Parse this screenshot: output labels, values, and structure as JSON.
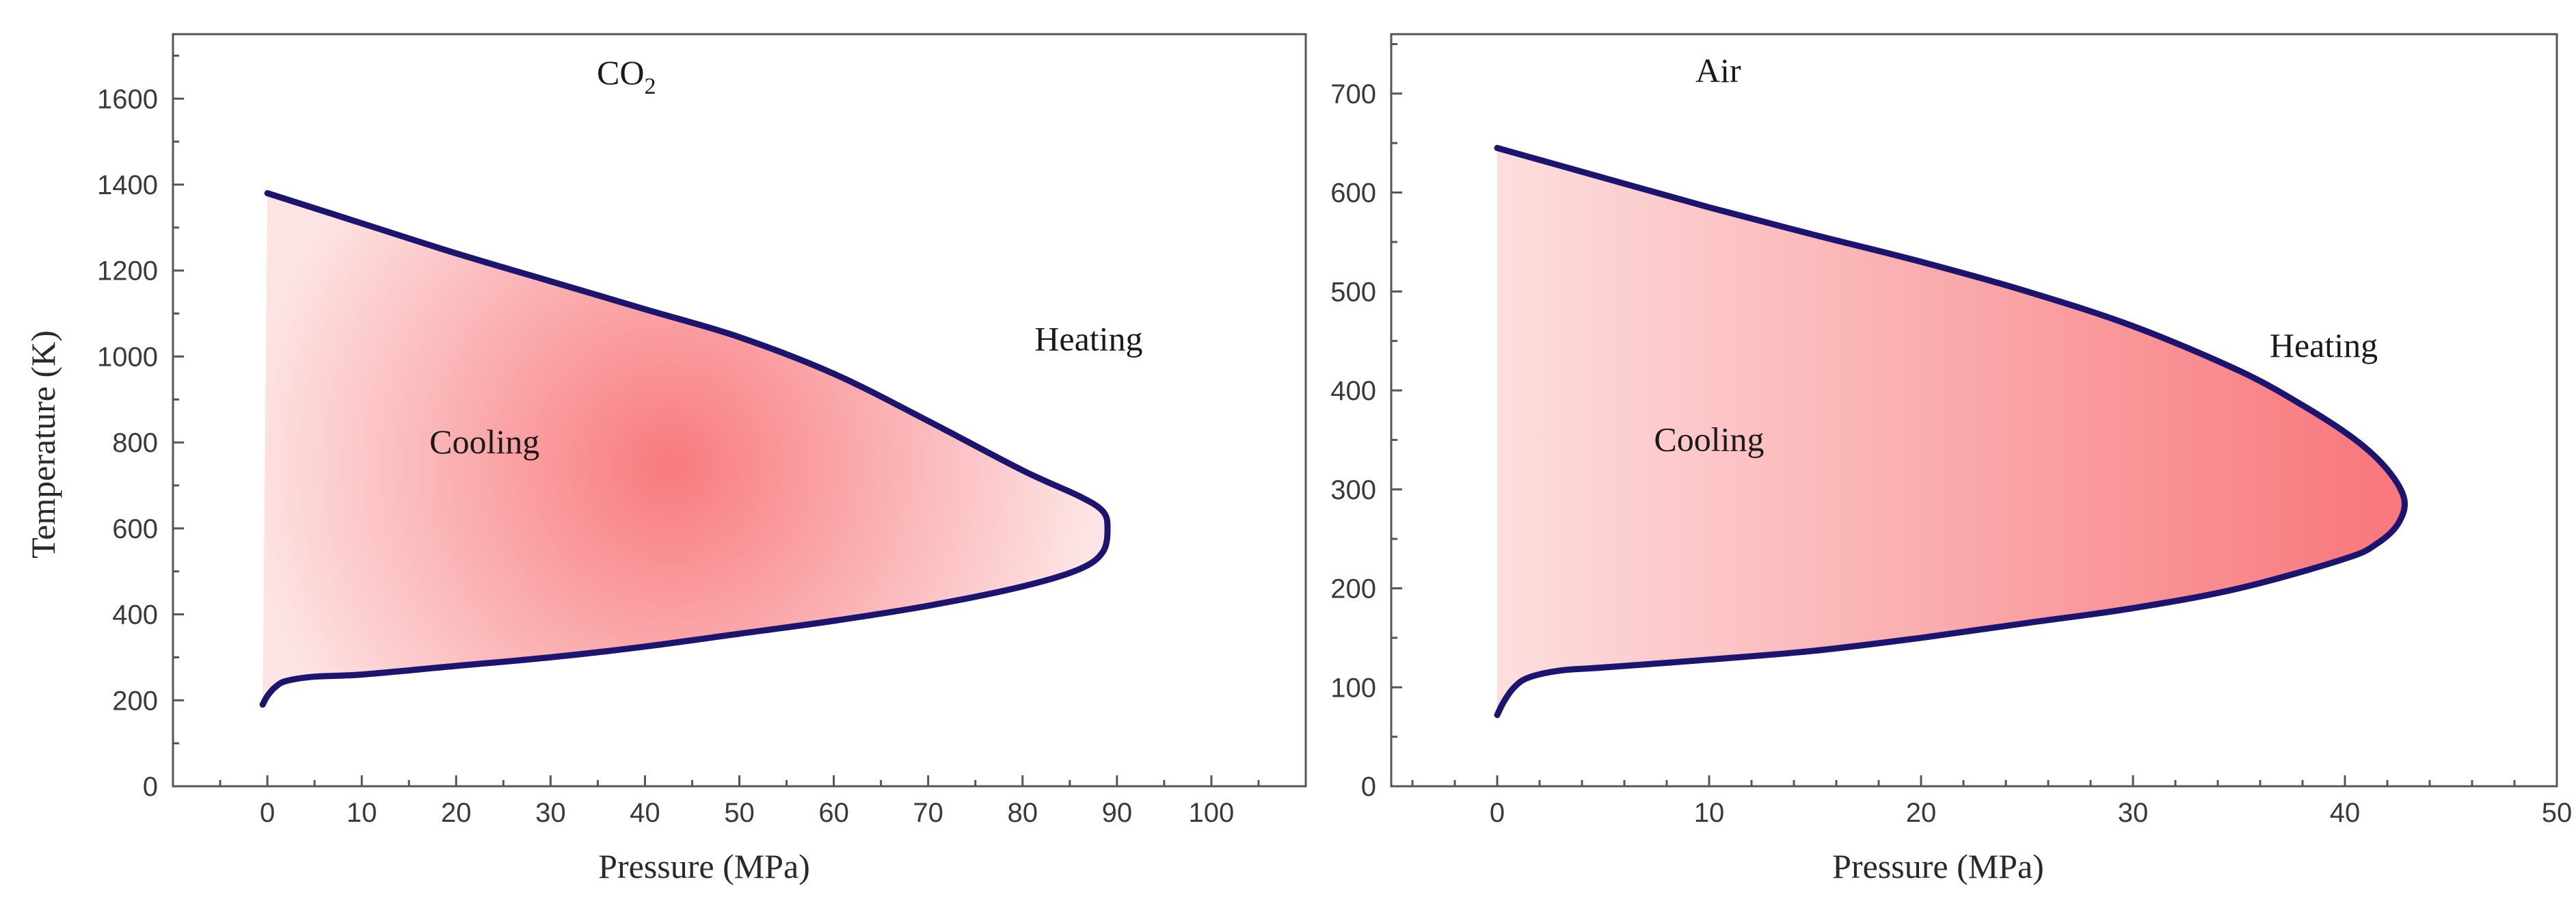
{
  "chart_data": [
    {
      "type": "area",
      "title": "CO",
      "title_subscript": "2",
      "xlabel": "Pressure (MPa)",
      "ylabel": "Temperature (K)",
      "xlim": [
        -10,
        110
      ],
      "ylim": [
        0,
        1750
      ],
      "xticks": [
        0,
        10,
        20,
        30,
        40,
        50,
        60,
        70,
        80,
        90,
        100
      ],
      "yticks": [
        0,
        200,
        400,
        600,
        800,
        1000,
        1200,
        1400,
        1600
      ],
      "grid": false,
      "annotations": [
        {
          "text": "Cooling",
          "x": 23,
          "y": 800
        },
        {
          "text": "Heating",
          "x": 87,
          "y": 1040
        }
      ],
      "upper_boundary": {
        "x": [
          0,
          10,
          20,
          30,
          40,
          50,
          60,
          70,
          80,
          86,
          88.5,
          89
        ],
        "y": [
          1380,
          1310,
          1240,
          1175,
          1110,
          1045,
          960,
          850,
          735,
          675,
          640,
          600
        ]
      },
      "lower_boundary": {
        "x": [
          89,
          88.5,
          86,
          80,
          70,
          60,
          50,
          40,
          30,
          20,
          10,
          5,
          2,
          0.8,
          0,
          -0.5
        ],
        "y": [
          600,
          545,
          505,
          465,
          420,
          385,
          355,
          325,
          300,
          280,
          260,
          255,
          245,
          230,
          210,
          190
        ]
      },
      "colors": {
        "boundary": "#1b1570",
        "fill_edge": "#fde4e4",
        "fill_center": "#f87a7e"
      }
    },
    {
      "type": "area",
      "title": "Air",
      "xlabel": "Pressure (MPa)",
      "ylabel": "",
      "xlim": [
        -5,
        50
      ],
      "ylim": [
        0,
        760
      ],
      "xticks": [
        0,
        10,
        20,
        30,
        40,
        50
      ],
      "yticks": [
        0,
        100,
        200,
        300,
        400,
        500,
        600,
        700
      ],
      "grid": false,
      "annotations": [
        {
          "text": "Cooling",
          "x": 10,
          "y": 350
        },
        {
          "text": "Heating",
          "x": 39,
          "y": 445
        }
      ],
      "upper_boundary": {
        "x": [
          0,
          5,
          10,
          15,
          20,
          25,
          30,
          35,
          38,
          40.5,
          42,
          42.8
        ],
        "y": [
          645,
          615,
          585,
          557,
          530,
          500,
          465,
          420,
          385,
          350,
          320,
          290
        ]
      },
      "lower_boundary": {
        "x": [
          42.8,
          42.5,
          41.5,
          40,
          35,
          30,
          25,
          20,
          15,
          10,
          5,
          3,
          1.5,
          0.8,
          0.3,
          0
        ],
        "y": [
          290,
          265,
          245,
          230,
          200,
          180,
          165,
          150,
          137,
          128,
          120,
          117,
          110,
          100,
          85,
          72
        ]
      },
      "colors": {
        "boundary": "#1b1570",
        "fill_edge": "#fde0e0",
        "fill_center": "#f87a7e"
      }
    }
  ]
}
